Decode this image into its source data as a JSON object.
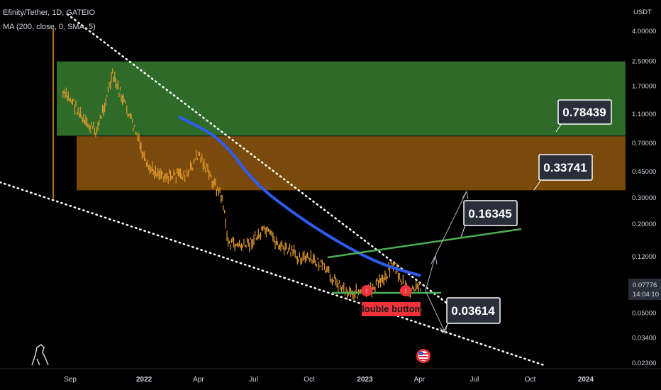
{
  "header": {
    "symbol": "Efinity/Tether, 1D, GATEIO",
    "indicator": "MA (200, close, 0, SMA, 5)"
  },
  "axis": {
    "currency": "USDT",
    "scale": "log",
    "y_ticks": [
      "4.00000",
      "2.50000",
      "1.70000",
      "1.10000",
      "0.70000",
      "0.45000",
      "0.30000",
      "0.20000",
      "0.12000",
      "0.05000",
      "0.03400",
      "0.02300"
    ],
    "x_ticks": [
      "Sep",
      "2022",
      "Apr",
      "Jul",
      "Oct",
      "2023",
      "Apr",
      "Jul",
      "Oct",
      "2024"
    ],
    "last_price": "0.07776",
    "countdown": "14:04:10"
  },
  "colors": {
    "background": "#000000",
    "candles": "#e39a2c",
    "ma_line": "#2f5cf0",
    "green_zone": "#2e6b2a",
    "orange_zone": "#7a4a0c",
    "green_lines": "#4caf50",
    "marker_red": "#f0323c",
    "label_box": "#2a2e39",
    "price_tag": "#2a2e39"
  },
  "chart_data": {
    "type": "line",
    "title": "Efinity/Tether, 1D, GATEIO",
    "y_scale": "log",
    "ylim": [
      0.023,
      5.0
    ],
    "x_range": [
      "2021-08-14",
      "2024-03-01"
    ],
    "series": [
      {
        "name": "Efinity/Tether",
        "x": [
          "2021-08-20",
          "2021-09-05",
          "2021-09-25",
          "2021-10-15",
          "2021-11-10",
          "2021-11-28",
          "2021-12-20",
          "2022-01-05",
          "2022-02-10",
          "2022-03-15",
          "2022-04-01",
          "2022-04-20",
          "2022-05-10",
          "2022-05-20",
          "2022-06-15",
          "2022-07-20",
          "2022-08-15",
          "2022-09-15",
          "2022-10-15",
          "2022-11-10",
          "2022-12-01",
          "2023-01-05",
          "2023-02-05",
          "2023-02-15",
          "2023-03-01",
          "2023-03-15",
          "2023-04-05"
        ],
        "y": [
          1.5,
          1.35,
          0.95,
          0.85,
          2.0,
          1.35,
          0.8,
          0.48,
          0.42,
          0.43,
          0.6,
          0.42,
          0.3,
          0.15,
          0.14,
          0.18,
          0.14,
          0.12,
          0.11,
          0.085,
          0.07,
          0.068,
          0.09,
          0.11,
          0.085,
          0.068,
          0.078
        ]
      },
      {
        "name": "MA (200, close, 0, SMA, 5)",
        "x": [
          "2022-03-01",
          "2022-05-10",
          "2022-07-01",
          "2022-09-15",
          "2022-12-01",
          "2023-02-01",
          "2023-04-01"
        ],
        "y": [
          1.05,
          0.75,
          0.38,
          0.22,
          0.14,
          0.105,
          0.09
        ]
      }
    ],
    "zones": [
      {
        "name": "green-zone",
        "from": 0.78439,
        "to": 2.5
      },
      {
        "name": "orange-zone",
        "from": 0.33741,
        "to": 0.78439
      }
    ],
    "annotations": [
      "0.78439",
      "0.33741",
      "0.16345",
      "0.03614",
      "double buttom"
    ]
  }
}
